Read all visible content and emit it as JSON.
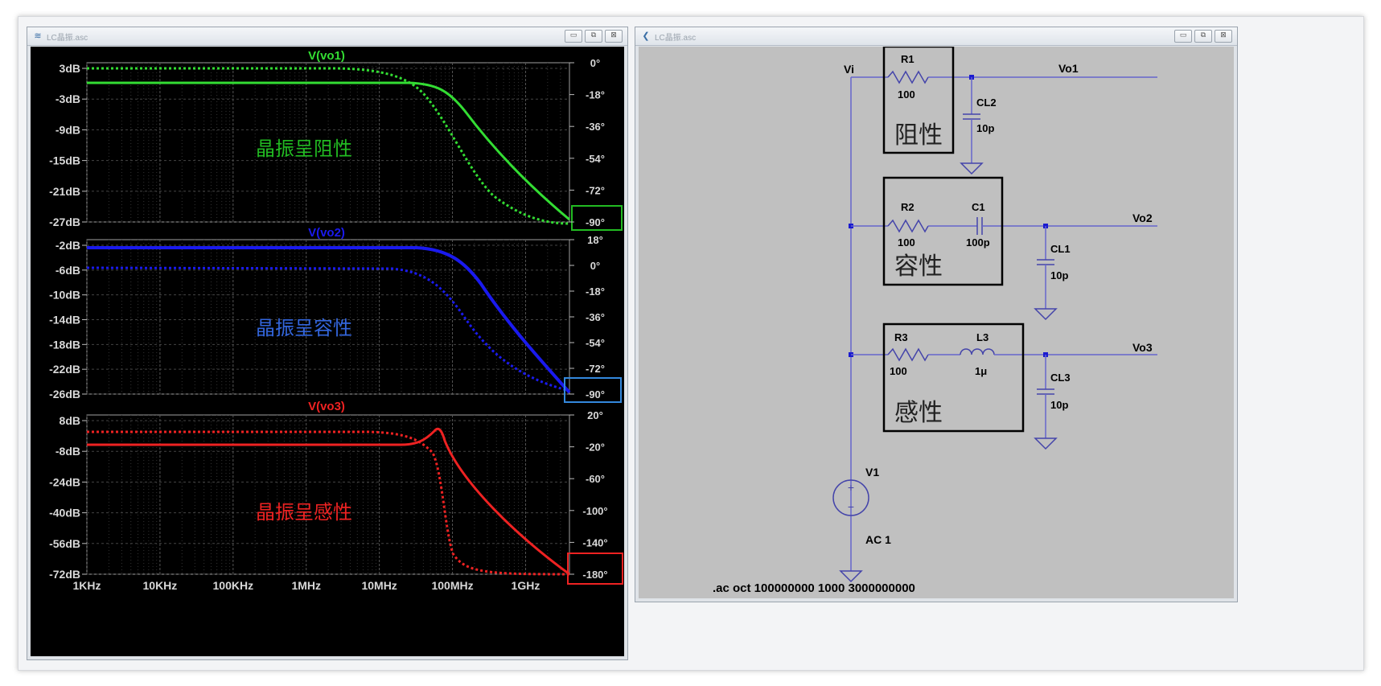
{
  "left_window": {
    "title": "LC晶振.asc",
    "buttons": [
      "▭",
      "⧉",
      "⊠"
    ],
    "panes": [
      {
        "trace_title": "V(vo1)",
        "color": "#33dd33",
        "label": "晶振呈阻性",
        "label_color": "#22bb22",
        "left_ticks": [
          "3dB",
          "-3dB",
          "-9dB",
          "-15dB",
          "-21dB",
          "-27dB"
        ],
        "right_ticks": [
          "0°",
          "-18°",
          "-36°",
          "-54°",
          "-72°",
          "-90°"
        ],
        "highlight_color": "#22bb22"
      },
      {
        "trace_title": "V(vo2)",
        "color": "#1a1aee",
        "label": "晶振呈容性",
        "label_color": "#3366dd",
        "left_ticks": [
          "-2dB",
          "-6dB",
          "-10dB",
          "-14dB",
          "-18dB",
          "-22dB",
          "-26dB"
        ],
        "right_ticks": [
          "18°",
          "0°",
          "-18°",
          "-36°",
          "-54°",
          "-72°",
          "-90°"
        ],
        "highlight_color": "#3388dd"
      },
      {
        "trace_title": "V(vo3)",
        "color": "#ee2222",
        "label": "晶振呈感性",
        "label_color": "#ee2222",
        "left_ticks": [
          "8dB",
          "-8dB",
          "-24dB",
          "-40dB",
          "-56dB",
          "-72dB"
        ],
        "right_ticks": [
          "20°",
          "-20°",
          "-60°",
          "-100°",
          "-140°",
          "-180°"
        ],
        "highlight_color": "#ee2222"
      }
    ],
    "x_ticks": [
      "1KHz",
      "10KHz",
      "100KHz",
      "1MHz",
      "10MHz",
      "100MHz",
      "1GHz"
    ]
  },
  "right_window": {
    "title": "LC晶振.asc",
    "buttons": [
      "▭",
      "⧉",
      "⊠"
    ],
    "labels": {
      "vi": "Vi",
      "vo1": "Vo1",
      "vo2": "Vo2",
      "vo3": "Vo3",
      "r1": "R1",
      "r1_val": "100",
      "cl2": "CL2",
      "cl2_val": "10p",
      "box1": "阻性",
      "r2": "R2",
      "r2_val": "100",
      "c1": "C1",
      "c1_val": "100p",
      "cl1": "CL1",
      "cl1_val": "10p",
      "box2": "容性",
      "r3": "R3",
      "r3_val": "100",
      "l3": "L3",
      "l3_val": "1μ",
      "cl3": "CL3",
      "cl3_val": "10p",
      "box3": "感性",
      "v1": "V1",
      "v1_val": "AC 1",
      "directive": ".ac oct 100000000 1000 3000000000"
    }
  }
}
